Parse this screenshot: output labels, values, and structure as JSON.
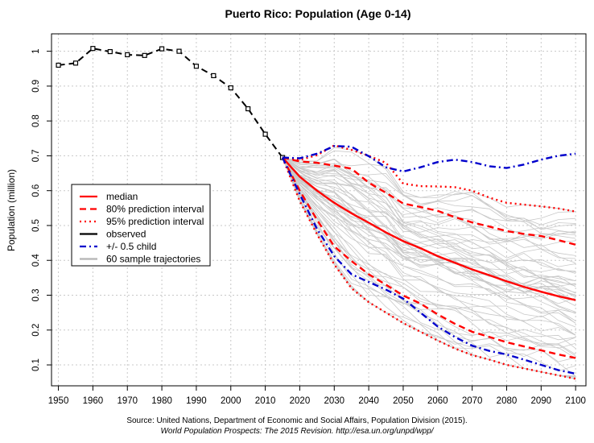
{
  "chart_data": {
    "type": "line",
    "title": "Puerto Rico: Population (Age 0-14)",
    "xlabel": "",
    "ylabel": "Population (million)",
    "xlim": [
      1948,
      2103
    ],
    "ylim": [
      0.04,
      1.05
    ],
    "xticks": [
      1950,
      1960,
      1970,
      1980,
      1990,
      2000,
      2010,
      2020,
      2030,
      2040,
      2050,
      2060,
      2070,
      2080,
      2090,
      2100
    ],
    "yticks": [
      0.1,
      0.2,
      0.3,
      0.4,
      0.5,
      0.6,
      0.7,
      0.8,
      0.9,
      1
    ],
    "ytick_labels": [
      "0.1",
      "0.2",
      "0.3",
      "0.4",
      "0.5",
      "0.6",
      "0.7",
      "0.8",
      "0.9",
      "1"
    ],
    "grid": true,
    "legend_position": "left",
    "series": [
      {
        "name": "observed",
        "color": "#000000",
        "style": "dashed-with-points",
        "x": [
          1950,
          1955,
          1960,
          1965,
          1970,
          1975,
          1980,
          1985,
          1990,
          1995,
          2000,
          2005,
          2010,
          2015
        ],
        "y": [
          0.96,
          0.966,
          1.008,
          0.999,
          0.99,
          0.988,
          1.007,
          1.0,
          0.957,
          0.93,
          0.895,
          0.835,
          0.762,
          0.695
        ]
      },
      {
        "name": "median",
        "color": "#ff0000",
        "style": "solid",
        "x": [
          2015,
          2020,
          2025,
          2030,
          2035,
          2040,
          2045,
          2050,
          2055,
          2060,
          2065,
          2070,
          2075,
          2080,
          2085,
          2090,
          2095,
          2100
        ],
        "y": [
          0.695,
          0.64,
          0.6,
          0.565,
          0.535,
          0.508,
          0.48,
          0.455,
          0.435,
          0.412,
          0.393,
          0.374,
          0.357,
          0.34,
          0.324,
          0.31,
          0.297,
          0.286
        ]
      },
      {
        "name": "80% prediction interval",
        "color": "#ff0000",
        "style": "dashed",
        "x": [
          2015,
          2020,
          2025,
          2030,
          2035,
          2040,
          2045,
          2050,
          2055,
          2060,
          2065,
          2070,
          2075,
          2080,
          2085,
          2090,
          2095,
          2100
        ],
        "y": [
          0.695,
          0.684,
          0.68,
          0.672,
          0.663,
          0.623,
          0.594,
          0.563,
          0.553,
          0.542,
          0.524,
          0.509,
          0.497,
          0.484,
          0.476,
          0.47,
          0.458,
          0.445
        ]
      },
      {
        "name": "",
        "color": "#ff0000",
        "style": "dashed",
        "x": [
          2015,
          2020,
          2025,
          2030,
          2035,
          2040,
          2045,
          2050,
          2055,
          2060,
          2065,
          2070,
          2075,
          2080,
          2085,
          2090,
          2095,
          2100
        ],
        "y": [
          0.695,
          0.6,
          0.516,
          0.44,
          0.398,
          0.36,
          0.33,
          0.299,
          0.276,
          0.245,
          0.218,
          0.195,
          0.18,
          0.165,
          0.153,
          0.142,
          0.13,
          0.12
        ]
      },
      {
        "name": "95% prediction interval",
        "color": "#ff0000",
        "style": "dotted",
        "x": [
          2015,
          2020,
          2025,
          2030,
          2035,
          2040,
          2045,
          2050,
          2055,
          2060,
          2065,
          2070,
          2075,
          2080,
          2085,
          2090,
          2095,
          2100
        ],
        "y": [
          0.695,
          0.688,
          0.702,
          0.73,
          0.717,
          0.7,
          0.68,
          0.62,
          0.613,
          0.612,
          0.61,
          0.6,
          0.58,
          0.565,
          0.56,
          0.555,
          0.549,
          0.54
        ]
      },
      {
        "name": "",
        "color": "#ff0000",
        "style": "dotted",
        "x": [
          2015,
          2020,
          2025,
          2030,
          2035,
          2040,
          2045,
          2050,
          2055,
          2060,
          2065,
          2070,
          2075,
          2080,
          2085,
          2090,
          2095,
          2100
        ],
        "y": [
          0.695,
          0.57,
          0.475,
          0.388,
          0.32,
          0.28,
          0.25,
          0.22,
          0.195,
          0.17,
          0.147,
          0.128,
          0.115,
          0.1,
          0.09,
          0.08,
          0.07,
          0.06
        ]
      },
      {
        "name": "+/- 0.5 child",
        "color": "#0000cc",
        "style": "dash-dot",
        "x": [
          2015,
          2020,
          2025,
          2030,
          2035,
          2040,
          2045,
          2050,
          2055,
          2060,
          2065,
          2070,
          2075,
          2080,
          2085,
          2090,
          2095,
          2100
        ],
        "y": [
          0.695,
          0.693,
          0.706,
          0.728,
          0.726,
          0.699,
          0.667,
          0.655,
          0.667,
          0.682,
          0.689,
          0.682,
          0.67,
          0.665,
          0.675,
          0.689,
          0.7,
          0.706
        ]
      },
      {
        "name": "",
        "color": "#0000cc",
        "style": "dash-dot",
        "x": [
          2015,
          2020,
          2025,
          2030,
          2035,
          2040,
          2045,
          2050,
          2055,
          2060,
          2065,
          2070,
          2075,
          2080,
          2085,
          2090,
          2095,
          2100
        ],
        "y": [
          0.695,
          0.59,
          0.49,
          0.412,
          0.36,
          0.338,
          0.316,
          0.29,
          0.25,
          0.21,
          0.18,
          0.155,
          0.14,
          0.13,
          0.115,
          0.1,
          0.085,
          0.075
        ]
      }
    ],
    "sample_trajectories": {
      "name": "60 sample trajectories",
      "color": "#c8c8c8",
      "count": 60
    },
    "legend": [
      {
        "label": "median",
        "color": "#ff0000",
        "style": "solid"
      },
      {
        "label": "80% prediction interval",
        "color": "#ff0000",
        "style": "dashed"
      },
      {
        "label": "95% prediction interval",
        "color": "#ff0000",
        "style": "dotted"
      },
      {
        "label": "observed",
        "color": "#000000",
        "style": "solid"
      },
      {
        "label": "+/- 0.5 child",
        "color": "#0000cc",
        "style": "dash-dot"
      },
      {
        "label": "60 sample trajectories",
        "color": "#b4b4b4",
        "style": "solid"
      }
    ]
  },
  "source": {
    "line1": "Source: United Nations, Department of Economic and Social Affairs, Population Division (2015).",
    "line2": "World Population Prospects: The 2015 Revision. http://esa.un.org/unpd/wpp/"
  }
}
